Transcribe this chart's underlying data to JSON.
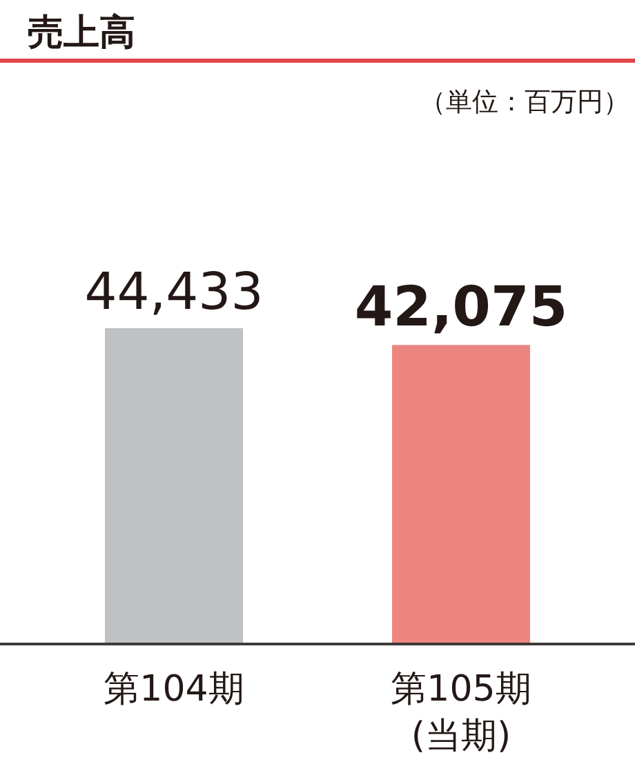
{
  "chart_data": {
    "type": "bar",
    "title": "売上高",
    "annotations": [
      "（単位：百万円）"
    ],
    "categories": [
      "第104期",
      "第105期\n(当期)"
    ],
    "values": [
      44433,
      42075
    ],
    "colors": [
      "#c0c1c3",
      "#ec8580"
    ],
    "value_labels": [
      "44,433",
      "42,075"
    ]
  }
}
